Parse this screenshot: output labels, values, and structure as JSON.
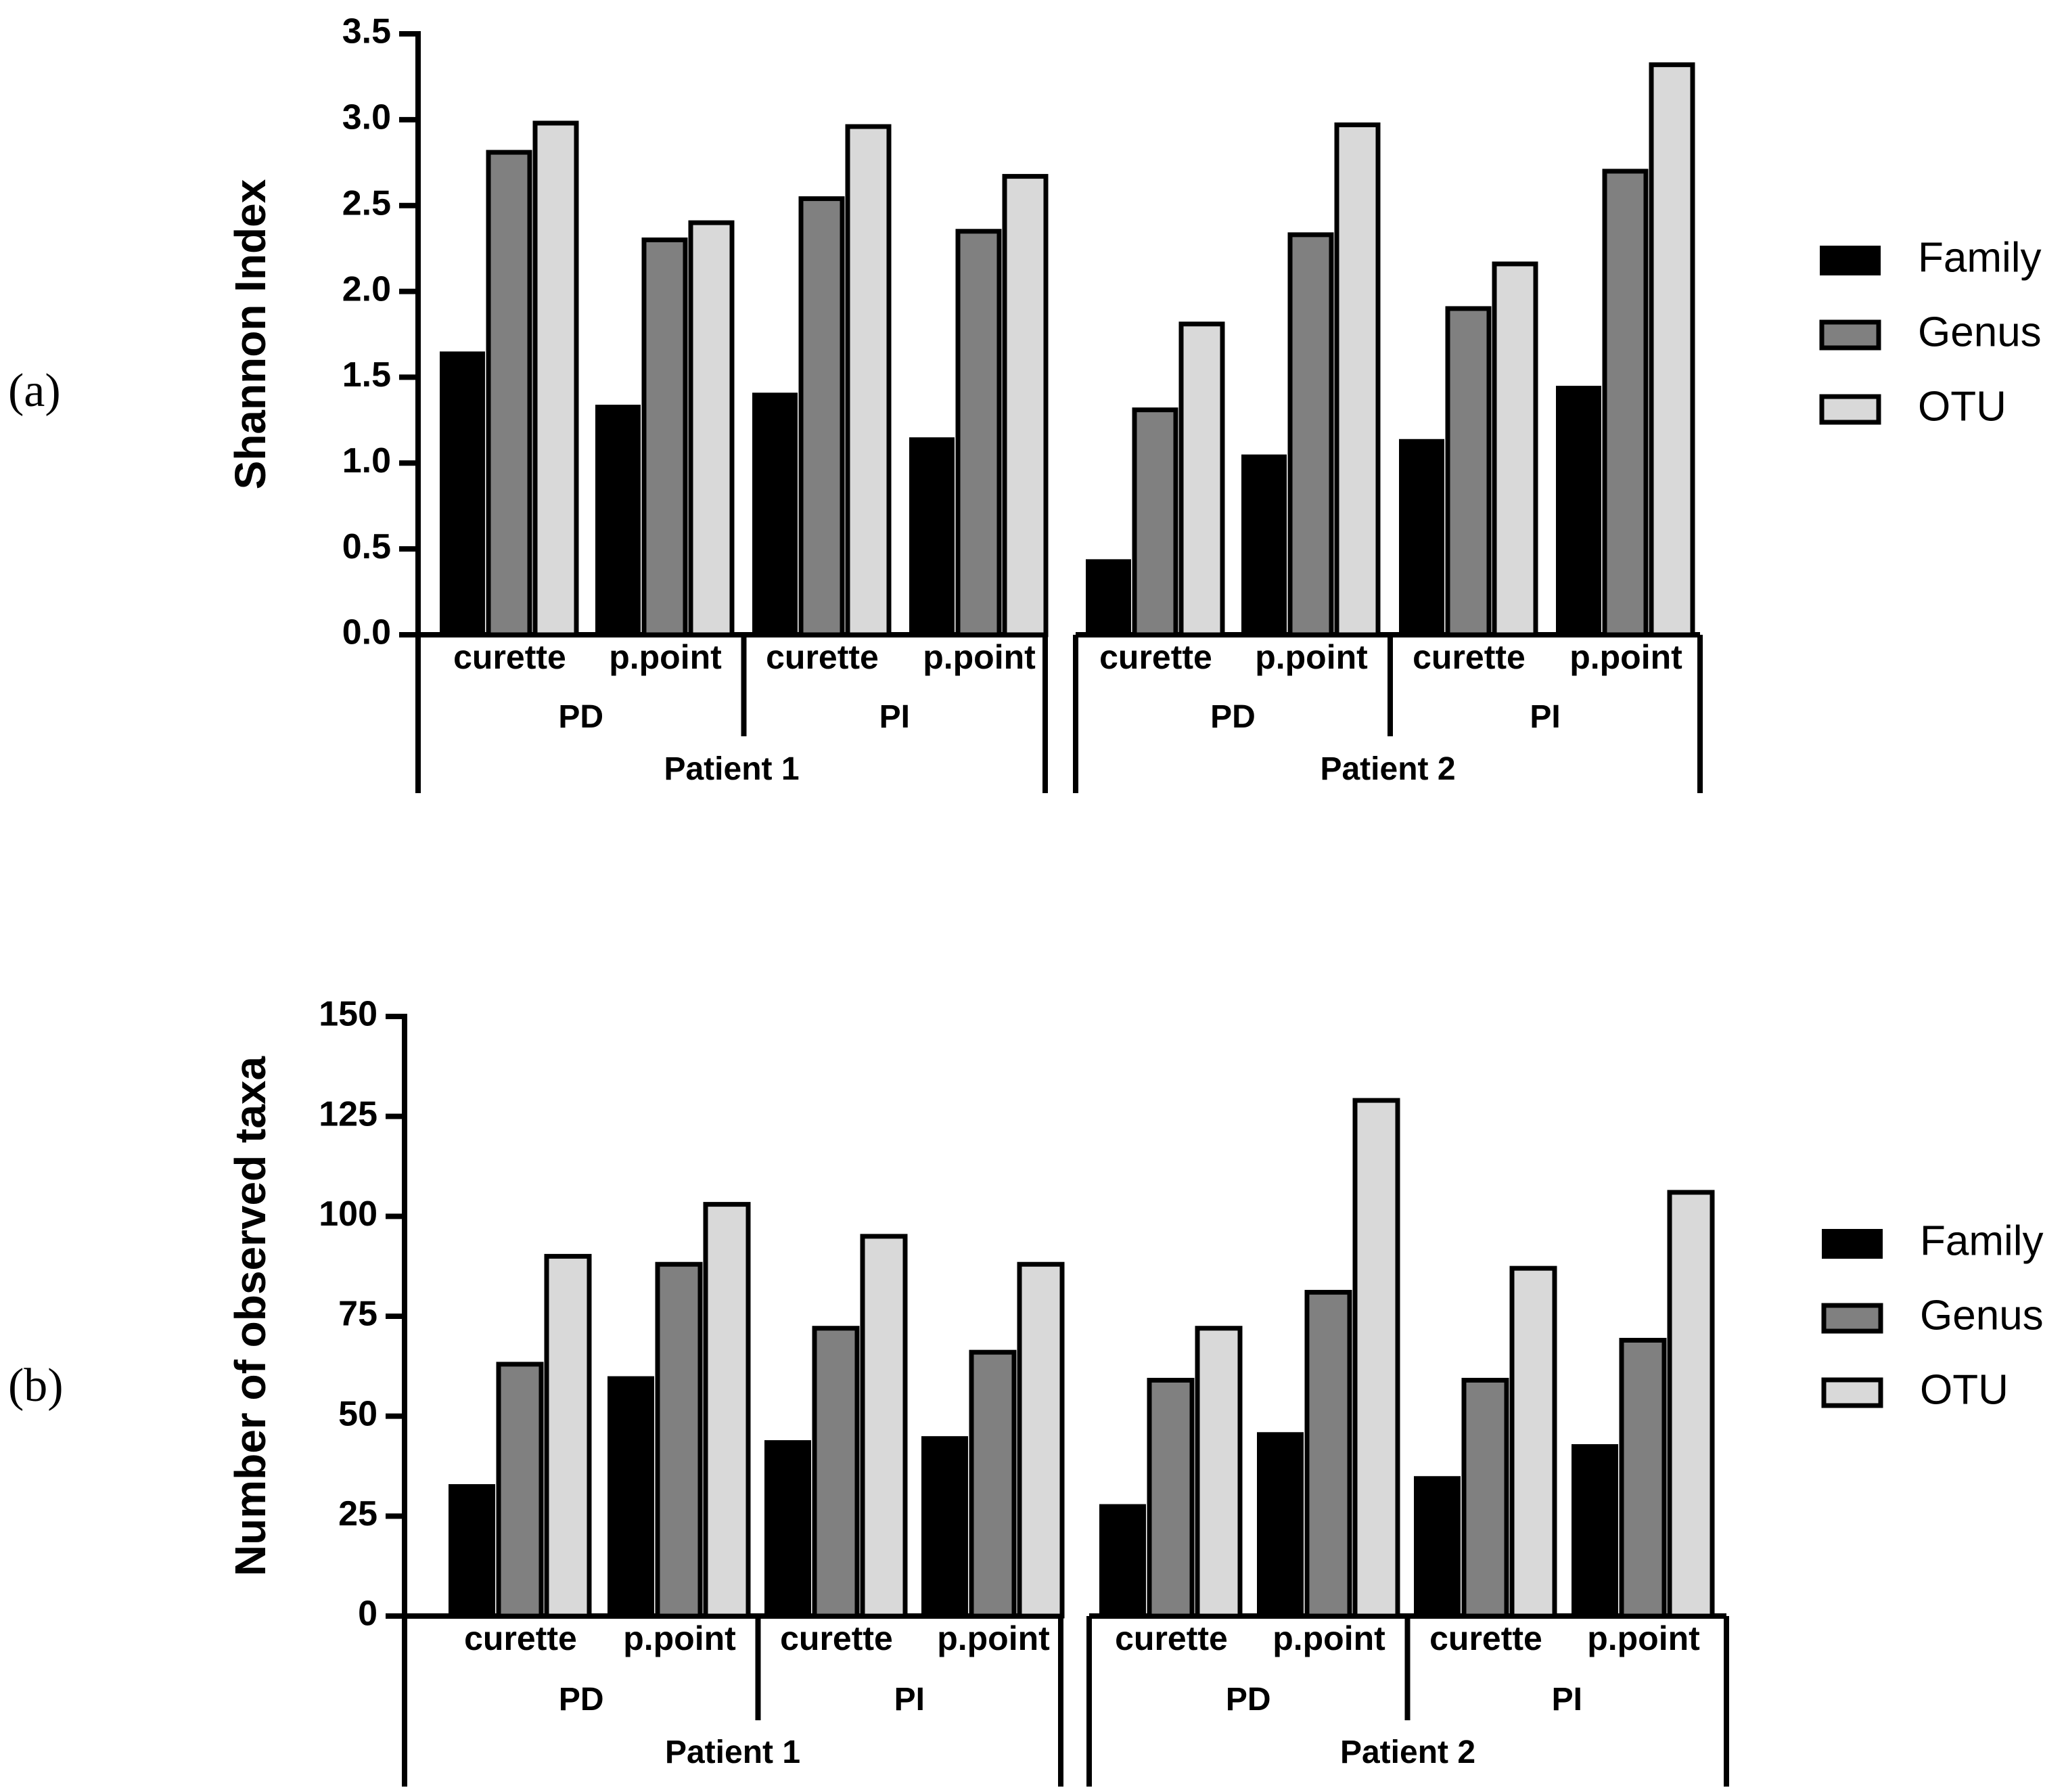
{
  "chart_data": [
    {
      "type": "bar",
      "panel_label": "(a)",
      "ylabel": "Shannon Index",
      "ylim": [
        0,
        3.5
      ],
      "yticks": [
        "0.0",
        "0.5",
        "1.0",
        "1.5",
        "2.0",
        "2.5",
        "3.0",
        "3.5"
      ],
      "categories": [
        "curette",
        "p.point",
        "curette",
        "p.point",
        "curette",
        "p.point",
        "curette",
        "p.point"
      ],
      "site_groups": [
        "PD",
        "PI",
        "PD",
        "PI"
      ],
      "patients": [
        "Patient 1",
        "Patient 2"
      ],
      "series": [
        {
          "name": "Family",
          "color": "#000000",
          "values": [
            1.65,
            1.34,
            1.41,
            1.15,
            0.44,
            1.05,
            1.14,
            1.45
          ]
        },
        {
          "name": "Genus",
          "color": "#808080",
          "values": [
            2.81,
            2.3,
            2.54,
            2.35,
            1.31,
            2.33,
            1.9,
            2.7
          ]
        },
        {
          "name": "OTU",
          "color": "#d9d9d9",
          "values": [
            2.98,
            2.4,
            2.96,
            2.67,
            1.81,
            2.97,
            2.16,
            3.32
          ]
        }
      ],
      "legend": [
        "Family",
        "Genus",
        "OTU"
      ]
    },
    {
      "type": "bar",
      "panel_label": "(b)",
      "ylabel": "Number of observed taxa",
      "ylim": [
        0,
        150
      ],
      "yticks": [
        "0",
        "25",
        "50",
        "75",
        "100",
        "125",
        "150"
      ],
      "categories": [
        "curette",
        "p.point",
        "curette",
        "p.point",
        "curette",
        "p.point",
        "curette",
        "p.point"
      ],
      "site_groups": [
        "PD",
        "PI",
        "PD",
        "PI"
      ],
      "patients": [
        "Patient 1",
        "Patient 2"
      ],
      "series": [
        {
          "name": "Family",
          "color": "#000000",
          "values": [
            33,
            60,
            44,
            45,
            28,
            46,
            35,
            43
          ]
        },
        {
          "name": "Genus",
          "color": "#808080",
          "values": [
            63,
            88,
            72,
            66,
            59,
            81,
            59,
            69
          ]
        },
        {
          "name": "OTU",
          "color": "#d9d9d9",
          "values": [
            90,
            103,
            95,
            88,
            72,
            129,
            87,
            106
          ]
        }
      ],
      "legend": [
        "Family",
        "Genus",
        "OTU"
      ]
    }
  ]
}
